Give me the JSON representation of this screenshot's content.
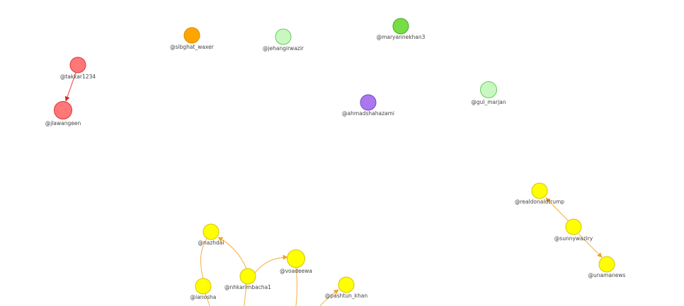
{
  "nodes": [
    {
      "label": "@sibghat_waxer"
    },
    {
      "label": "@jehangirwazir"
    },
    {
      "label": "@maryannekhan3"
    },
    {
      "label": "@takkar1234"
    },
    {
      "label": "@jlawangeen"
    },
    {
      "label": "@ahmadshahazami"
    },
    {
      "label": "@gul_marjan"
    },
    {
      "label": "@realdonaldtrump"
    },
    {
      "label": "@sunnywaziry"
    },
    {
      "label": "@unamanews"
    },
    {
      "label": "@nazhdai"
    },
    {
      "label": "@voadeewa"
    },
    {
      "label": "@nhkarimbacha1"
    },
    {
      "label": "@ianosha"
    },
    {
      "label": "@pashtun_khan"
    }
  ]
}
